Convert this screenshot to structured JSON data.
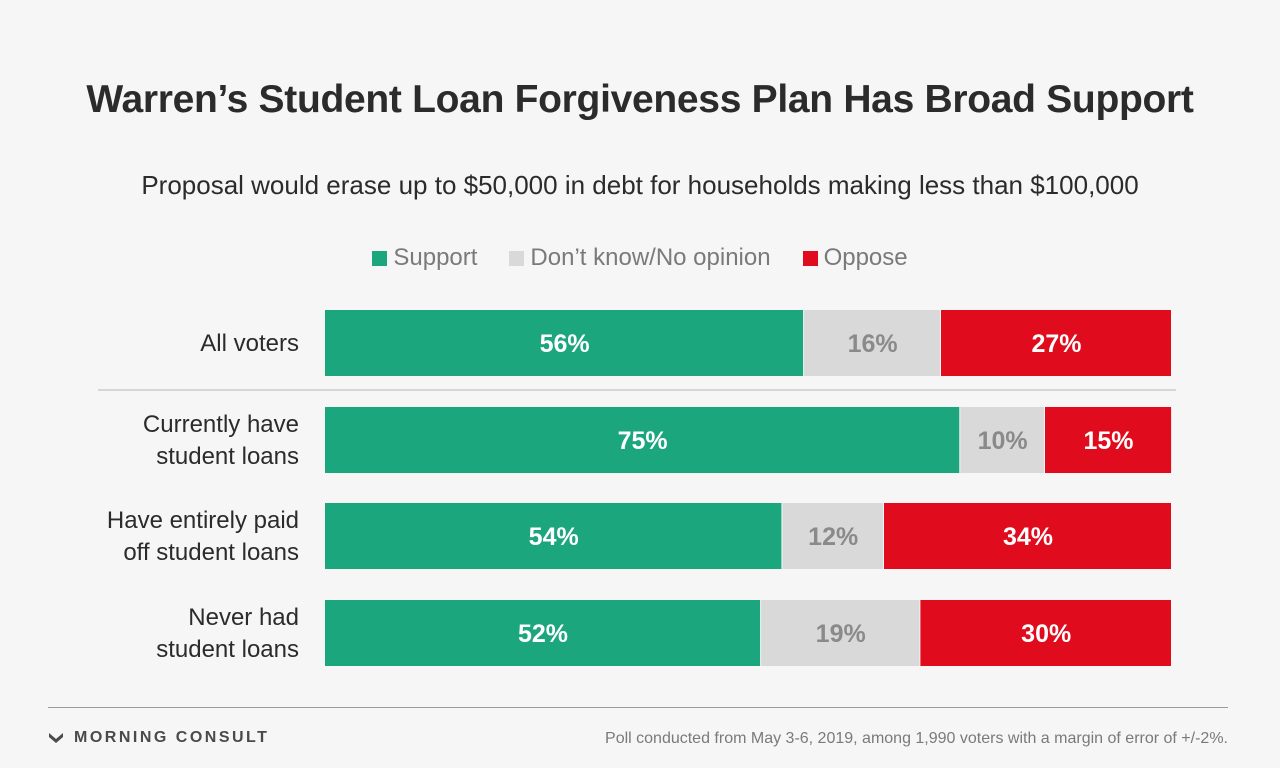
{
  "chart_data": {
    "type": "bar",
    "orientation": "horizontal",
    "stacked": true,
    "title": "Warren’s Student Loan Forgiveness Plan Has Broad Support",
    "subtitle": "Proposal would erase up to $50,000 in debt for households making less than $100,000",
    "categories": [
      [
        "All voters"
      ],
      [
        "Currently have",
        "student loans"
      ],
      [
        "Have entirely paid",
        "off student loans"
      ],
      [
        "Never had",
        "student loans"
      ]
    ],
    "series": [
      {
        "name": "Support",
        "color": "#1ba67d",
        "label_color": "#ffffff",
        "values": [
          56,
          75,
          54,
          52
        ]
      },
      {
        "name": "Don’t know/No opinion",
        "color": "#d9d9d9",
        "label_color": "#8a8a8a",
        "values": [
          16,
          10,
          12,
          19
        ]
      },
      {
        "name": "Oppose",
        "color": "#e00b1c",
        "label_color": "#ffffff",
        "values": [
          27,
          15,
          34,
          30
        ]
      }
    ],
    "value_suffix": "%",
    "legend_position": "top-center",
    "separator_after_first_row": true
  },
  "branding": {
    "logo_text": "MORNING CONSULT"
  },
  "footnote": "Poll conducted from May 3-6, 2019, among 1,990 voters with a margin of error of +/-2%."
}
